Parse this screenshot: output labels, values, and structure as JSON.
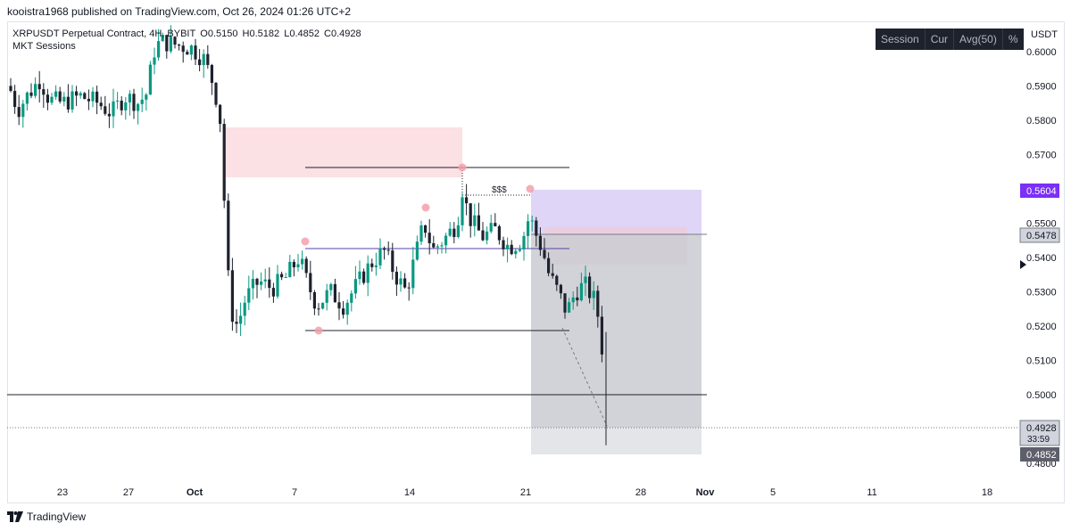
{
  "publisher": "kooistra1968 published on TradingView.com, Oct 26, 2024 01:26 UTC+2",
  "legend": {
    "symbol": "XRPUSDT Perpetual Contract, 4H, BYBIT",
    "open": "O0.5150",
    "high": "H0.5182",
    "low": "L0.4852",
    "close": "C0.4928",
    "indicator": "MKT Sessions"
  },
  "session_buttons": [
    "Session",
    "Cur",
    "Avg(50)",
    "%"
  ],
  "currency": "USDT",
  "price_labels": {
    "highlight": "0.5604",
    "line": "0.5478",
    "last": "0.4928",
    "countdown": "33:59",
    "low": "0.4852"
  },
  "annotation": "$$$",
  "branding": "TradingView",
  "colors": {
    "up": "#089981",
    "down": "#1e222d",
    "supply_zone": "#f7c9cf",
    "target_zone": "#c8b8f0",
    "stop_zone": "#c4c6cc",
    "swing_marker": "#f3a0ab",
    "purple_label": "#7b2ff7"
  },
  "chart_data": {
    "type": "candlestick",
    "x_ticks": [
      "23",
      "27",
      "Oct",
      "7",
      "14",
      "21",
      "28",
      "Nov",
      "5",
      "11",
      "18"
    ],
    "y_ticks": [
      0.48,
      0.49,
      0.5,
      0.51,
      0.52,
      0.53,
      0.54,
      0.55,
      0.56,
      0.57,
      0.58,
      0.59,
      0.6
    ],
    "ylim": [
      0.475,
      0.607
    ],
    "y_scale": "linear",
    "grid": false,
    "series": [
      {
        "x": "2024-09-19",
        "close": 0.585
      },
      {
        "x": "2024-09-21",
        "close": 0.583
      },
      {
        "x": "2024-09-23",
        "close": 0.582
      },
      {
        "x": "2024-09-25",
        "close": 0.585
      },
      {
        "x": "2024-09-27",
        "close": 0.586
      },
      {
        "x": "2024-09-29",
        "close": 0.605
      },
      {
        "x": "2024-10-01",
        "close": 0.595
      },
      {
        "x": "2024-10-02",
        "close": 0.54
      },
      {
        "x": "2024-10-03",
        "close": 0.52
      },
      {
        "x": "2024-10-05",
        "close": 0.53
      },
      {
        "x": "2024-10-07",
        "close": 0.54
      },
      {
        "x": "2024-10-09",
        "close": 0.528
      },
      {
        "x": "2024-10-11",
        "close": 0.535
      },
      {
        "x": "2024-10-13",
        "close": 0.54
      },
      {
        "x": "2024-10-15",
        "close": 0.545
      },
      {
        "x": "2024-10-17",
        "close": 0.55
      },
      {
        "x": "2024-10-19",
        "close": 0.545
      },
      {
        "x": "2024-10-21",
        "close": 0.553
      },
      {
        "x": "2024-10-22",
        "close": 0.54
      },
      {
        "x": "2024-10-23",
        "close": 0.528
      },
      {
        "x": "2024-10-24",
        "close": 0.53
      },
      {
        "x": "2024-10-25",
        "close": 0.4928
      }
    ],
    "horizontal_levels": [
      0.5667,
      0.544,
      0.5207,
      0.502
    ],
    "zones": [
      {
        "name": "supply",
        "from": "2024-10-03",
        "to": "2024-10-17",
        "top": 0.578,
        "bottom": 0.5645
      },
      {
        "name": "target",
        "from": "2024-10-21",
        "to": "2024-11-02",
        "top": 0.5604,
        "bottom": 0.5478
      },
      {
        "name": "stop",
        "from": "2024-10-21",
        "to": "2024-11-02",
        "top": 0.5478,
        "bottom": 0.4852
      }
    ]
  }
}
